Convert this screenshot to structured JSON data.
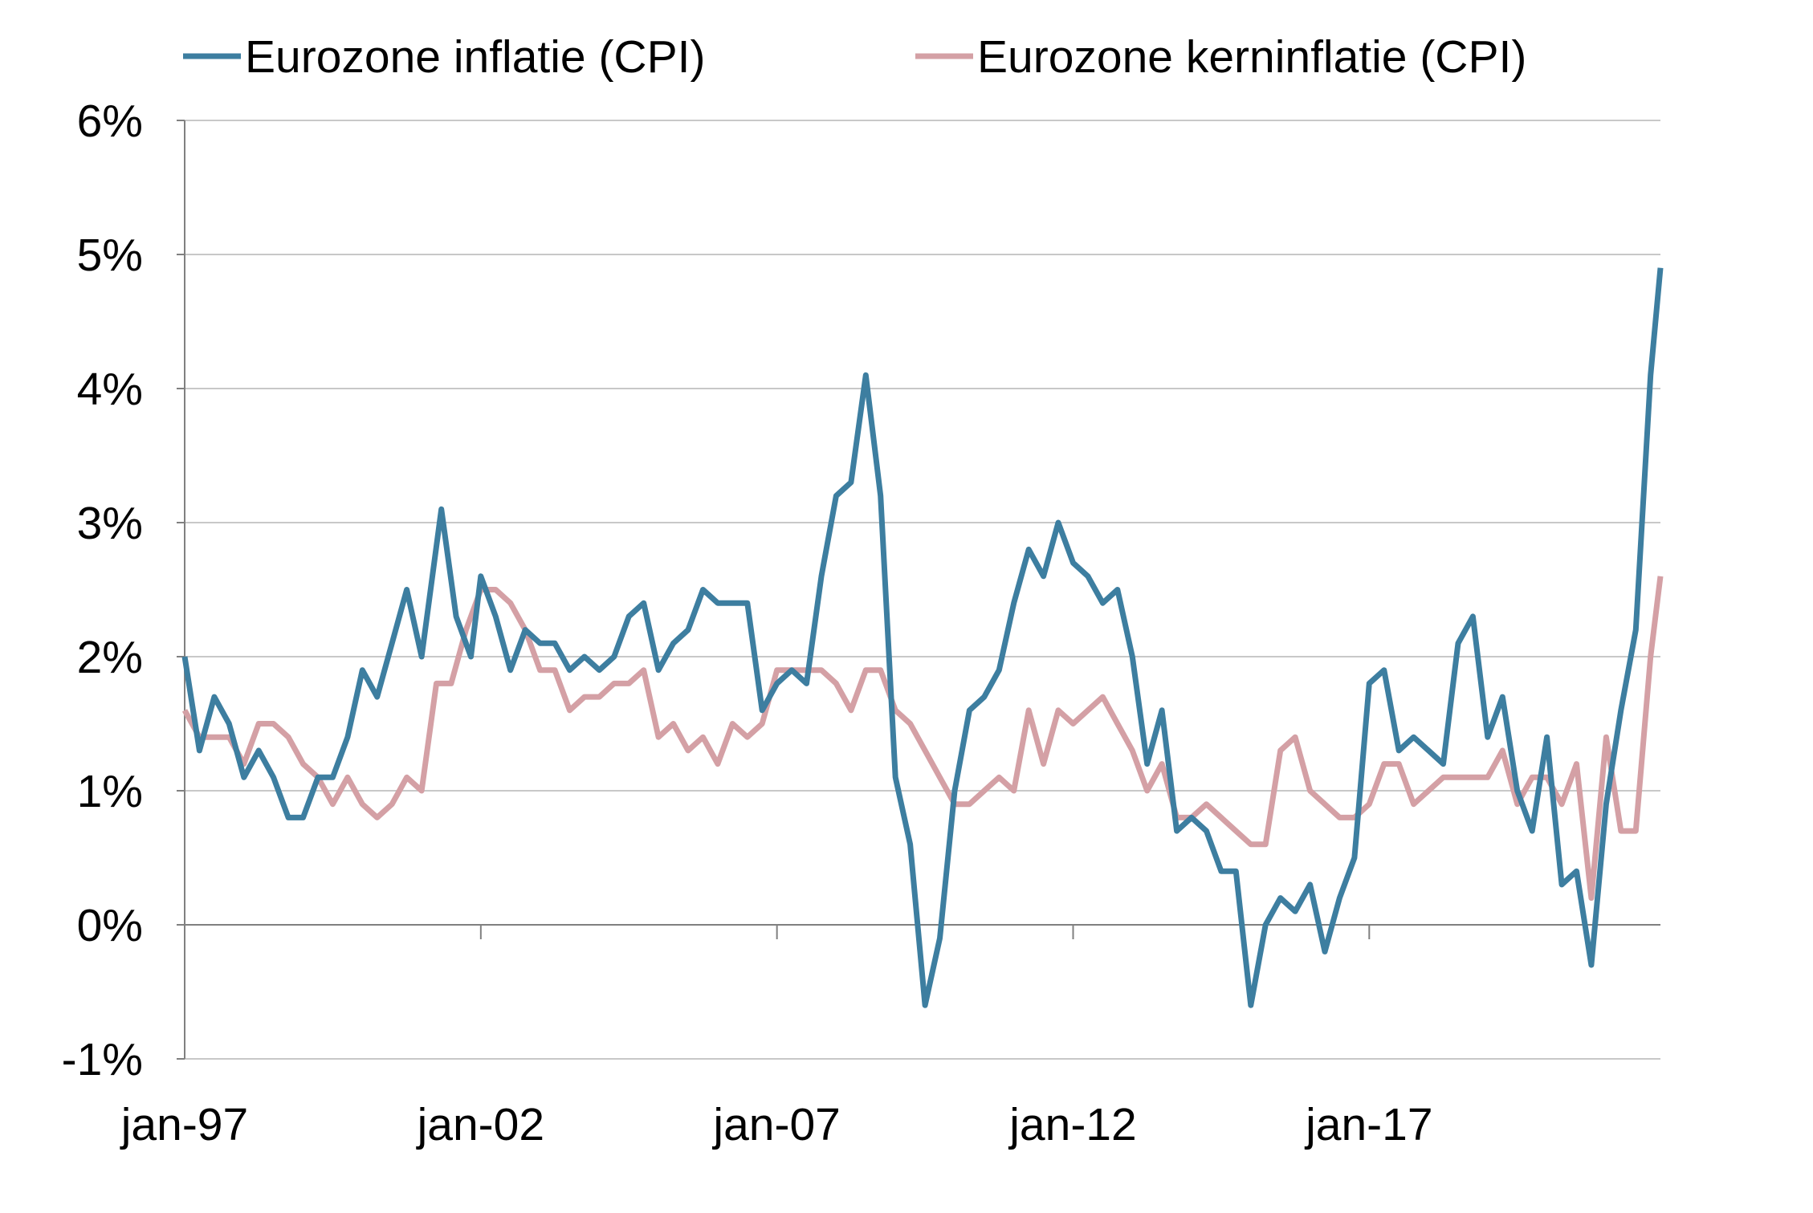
{
  "chart_data": {
    "type": "line",
    "title": "",
    "xlabel": "",
    "ylabel": "",
    "x_start": "1997-01",
    "x_end": "2021-12",
    "x_tick_labels": [
      "jan-97",
      "jan-02",
      "jan-07",
      "jan-12",
      "jan-17"
    ],
    "y_tick_labels": [
      "6%",
      "5%",
      "4%",
      "3%",
      "2%",
      "1%",
      "0%",
      "-1%"
    ],
    "ylim": [
      -1,
      6
    ],
    "y_unit": "%",
    "grid": "horizontal",
    "legend_placement": "top",
    "series": [
      {
        "name": "Eurozone inflatie (CPI)",
        "color": "#3d7ea0",
        "points": [
          [
            "1997-01",
            2.0
          ],
          [
            "1997-04",
            1.3
          ],
          [
            "1997-07",
            1.7
          ],
          [
            "1997-10",
            1.5
          ],
          [
            "1998-01",
            1.1
          ],
          [
            "1998-04",
            1.3
          ],
          [
            "1998-07",
            1.1
          ],
          [
            "1998-10",
            0.8
          ],
          [
            "1999-01",
            0.8
          ],
          [
            "1999-04",
            1.1
          ],
          [
            "1999-07",
            1.1
          ],
          [
            "1999-10",
            1.4
          ],
          [
            "2000-01",
            1.9
          ],
          [
            "2000-04",
            1.7
          ],
          [
            "2000-07",
            2.1
          ],
          [
            "2000-10",
            2.5
          ],
          [
            "2001-01",
            2.0
          ],
          [
            "2001-05",
            3.1
          ],
          [
            "2001-08",
            2.3
          ],
          [
            "2001-11",
            2.0
          ],
          [
            "2002-01",
            2.6
          ],
          [
            "2002-04",
            2.3
          ],
          [
            "2002-07",
            1.9
          ],
          [
            "2002-10",
            2.2
          ],
          [
            "2003-01",
            2.1
          ],
          [
            "2003-04",
            2.1
          ],
          [
            "2003-07",
            1.9
          ],
          [
            "2003-10",
            2.0
          ],
          [
            "2004-01",
            1.9
          ],
          [
            "2004-04",
            2.0
          ],
          [
            "2004-07",
            2.3
          ],
          [
            "2004-10",
            2.4
          ],
          [
            "2005-01",
            1.9
          ],
          [
            "2005-04",
            2.1
          ],
          [
            "2005-07",
            2.2
          ],
          [
            "2005-10",
            2.5
          ],
          [
            "2006-01",
            2.4
          ],
          [
            "2006-04",
            2.4
          ],
          [
            "2006-07",
            2.4
          ],
          [
            "2006-10",
            1.6
          ],
          [
            "2007-01",
            1.8
          ],
          [
            "2007-04",
            1.9
          ],
          [
            "2007-07",
            1.8
          ],
          [
            "2007-10",
            2.6
          ],
          [
            "2008-01",
            3.2
          ],
          [
            "2008-04",
            3.3
          ],
          [
            "2008-07",
            4.1
          ],
          [
            "2008-10",
            3.2
          ],
          [
            "2009-01",
            1.1
          ],
          [
            "2009-04",
            0.6
          ],
          [
            "2009-07",
            -0.6
          ],
          [
            "2009-10",
            -0.1
          ],
          [
            "2010-01",
            1.0
          ],
          [
            "2010-04",
            1.6
          ],
          [
            "2010-07",
            1.7
          ],
          [
            "2010-10",
            1.9
          ],
          [
            "2011-01",
            2.4
          ],
          [
            "2011-04",
            2.8
          ],
          [
            "2011-07",
            2.6
          ],
          [
            "2011-10",
            3.0
          ],
          [
            "2012-01",
            2.7
          ],
          [
            "2012-04",
            2.6
          ],
          [
            "2012-07",
            2.4
          ],
          [
            "2012-10",
            2.5
          ],
          [
            "2013-01",
            2.0
          ],
          [
            "2013-04",
            1.2
          ],
          [
            "2013-07",
            1.6
          ],
          [
            "2013-10",
            0.7
          ],
          [
            "2014-01",
            0.8
          ],
          [
            "2014-04",
            0.7
          ],
          [
            "2014-07",
            0.4
          ],
          [
            "2014-10",
            0.4
          ],
          [
            "2015-01",
            -0.6
          ],
          [
            "2015-04",
            0.0
          ],
          [
            "2015-07",
            0.2
          ],
          [
            "2015-10",
            0.1
          ],
          [
            "2016-01",
            0.3
          ],
          [
            "2016-04",
            -0.2
          ],
          [
            "2016-07",
            0.2
          ],
          [
            "2016-10",
            0.5
          ],
          [
            "2017-01",
            1.8
          ],
          [
            "2017-04",
            1.9
          ],
          [
            "2017-07",
            1.3
          ],
          [
            "2017-10",
            1.4
          ],
          [
            "2018-01",
            1.3
          ],
          [
            "2018-04",
            1.2
          ],
          [
            "2018-07",
            2.1
          ],
          [
            "2018-10",
            2.3
          ],
          [
            "2019-01",
            1.4
          ],
          [
            "2019-04",
            1.7
          ],
          [
            "2019-07",
            1.0
          ],
          [
            "2019-10",
            0.7
          ],
          [
            "2020-01",
            1.4
          ],
          [
            "2020-04",
            0.3
          ],
          [
            "2020-07",
            0.4
          ],
          [
            "2020-10",
            -0.3
          ],
          [
            "2021-01",
            0.9
          ],
          [
            "2021-04",
            1.6
          ],
          [
            "2021-07",
            2.2
          ],
          [
            "2021-10",
            4.1
          ],
          [
            "2021-12",
            4.9
          ]
        ]
      },
      {
        "name": "Eurozone kerninflatie (CPI)",
        "color": "#d4a0a5",
        "points": [
          [
            "1997-01",
            1.6
          ],
          [
            "1997-04",
            1.4
          ],
          [
            "1997-07",
            1.4
          ],
          [
            "1997-10",
            1.4
          ],
          [
            "1998-01",
            1.2
          ],
          [
            "1998-04",
            1.5
          ],
          [
            "1998-07",
            1.5
          ],
          [
            "1998-10",
            1.4
          ],
          [
            "1999-01",
            1.2
          ],
          [
            "1999-04",
            1.1
          ],
          [
            "1999-07",
            0.9
          ],
          [
            "1999-10",
            1.1
          ],
          [
            "2000-01",
            0.9
          ],
          [
            "2000-04",
            0.8
          ],
          [
            "2000-07",
            0.9
          ],
          [
            "2000-10",
            1.1
          ],
          [
            "2001-01",
            1.0
          ],
          [
            "2001-04",
            1.8
          ],
          [
            "2001-07",
            1.8
          ],
          [
            "2001-10",
            2.2
          ],
          [
            "2002-01",
            2.5
          ],
          [
            "2002-04",
            2.5
          ],
          [
            "2002-07",
            2.4
          ],
          [
            "2002-10",
            2.2
          ],
          [
            "2003-01",
            1.9
          ],
          [
            "2003-04",
            1.9
          ],
          [
            "2003-07",
            1.6
          ],
          [
            "2003-10",
            1.7
          ],
          [
            "2004-01",
            1.7
          ],
          [
            "2004-04",
            1.8
          ],
          [
            "2004-07",
            1.8
          ],
          [
            "2004-10",
            1.9
          ],
          [
            "2005-01",
            1.4
          ],
          [
            "2005-04",
            1.5
          ],
          [
            "2005-07",
            1.3
          ],
          [
            "2005-10",
            1.4
          ],
          [
            "2006-01",
            1.2
          ],
          [
            "2006-04",
            1.5
          ],
          [
            "2006-07",
            1.4
          ],
          [
            "2006-10",
            1.5
          ],
          [
            "2007-01",
            1.9
          ],
          [
            "2007-04",
            1.9
          ],
          [
            "2007-07",
            1.9
          ],
          [
            "2007-10",
            1.9
          ],
          [
            "2008-01",
            1.8
          ],
          [
            "2008-04",
            1.6
          ],
          [
            "2008-07",
            1.9
          ],
          [
            "2008-10",
            1.9
          ],
          [
            "2009-01",
            1.6
          ],
          [
            "2009-04",
            1.5
          ],
          [
            "2009-07",
            1.3
          ],
          [
            "2009-10",
            1.1
          ],
          [
            "2010-01",
            0.9
          ],
          [
            "2010-04",
            0.9
          ],
          [
            "2010-07",
            1.0
          ],
          [
            "2010-10",
            1.1
          ],
          [
            "2011-01",
            1.0
          ],
          [
            "2011-04",
            1.6
          ],
          [
            "2011-07",
            1.2
          ],
          [
            "2011-10",
            1.6
          ],
          [
            "2012-01",
            1.5
          ],
          [
            "2012-04",
            1.6
          ],
          [
            "2012-07",
            1.7
          ],
          [
            "2012-10",
            1.5
          ],
          [
            "2013-01",
            1.3
          ],
          [
            "2013-04",
            1.0
          ],
          [
            "2013-07",
            1.2
          ],
          [
            "2013-10",
            0.8
          ],
          [
            "2014-01",
            0.8
          ],
          [
            "2014-04",
            0.9
          ],
          [
            "2014-07",
            0.8
          ],
          [
            "2014-10",
            0.7
          ],
          [
            "2015-01",
            0.6
          ],
          [
            "2015-04",
            0.6
          ],
          [
            "2015-07",
            1.3
          ],
          [
            "2015-10",
            1.4
          ],
          [
            "2016-01",
            1.0
          ],
          [
            "2016-04",
            0.9
          ],
          [
            "2016-07",
            0.8
          ],
          [
            "2016-10",
            0.8
          ],
          [
            "2017-01",
            0.9
          ],
          [
            "2017-04",
            1.2
          ],
          [
            "2017-07",
            1.2
          ],
          [
            "2017-10",
            0.9
          ],
          [
            "2018-01",
            1.0
          ],
          [
            "2018-04",
            1.1
          ],
          [
            "2018-07",
            1.1
          ],
          [
            "2018-10",
            1.1
          ],
          [
            "2019-01",
            1.1
          ],
          [
            "2019-04",
            1.3
          ],
          [
            "2019-07",
            0.9
          ],
          [
            "2019-10",
            1.1
          ],
          [
            "2020-01",
            1.1
          ],
          [
            "2020-04",
            0.9
          ],
          [
            "2020-07",
            1.2
          ],
          [
            "2020-10",
            0.2
          ],
          [
            "2021-01",
            1.4
          ],
          [
            "2021-04",
            0.7
          ],
          [
            "2021-07",
            0.7
          ],
          [
            "2021-10",
            2.0
          ],
          [
            "2021-12",
            2.6
          ]
        ]
      }
    ]
  }
}
